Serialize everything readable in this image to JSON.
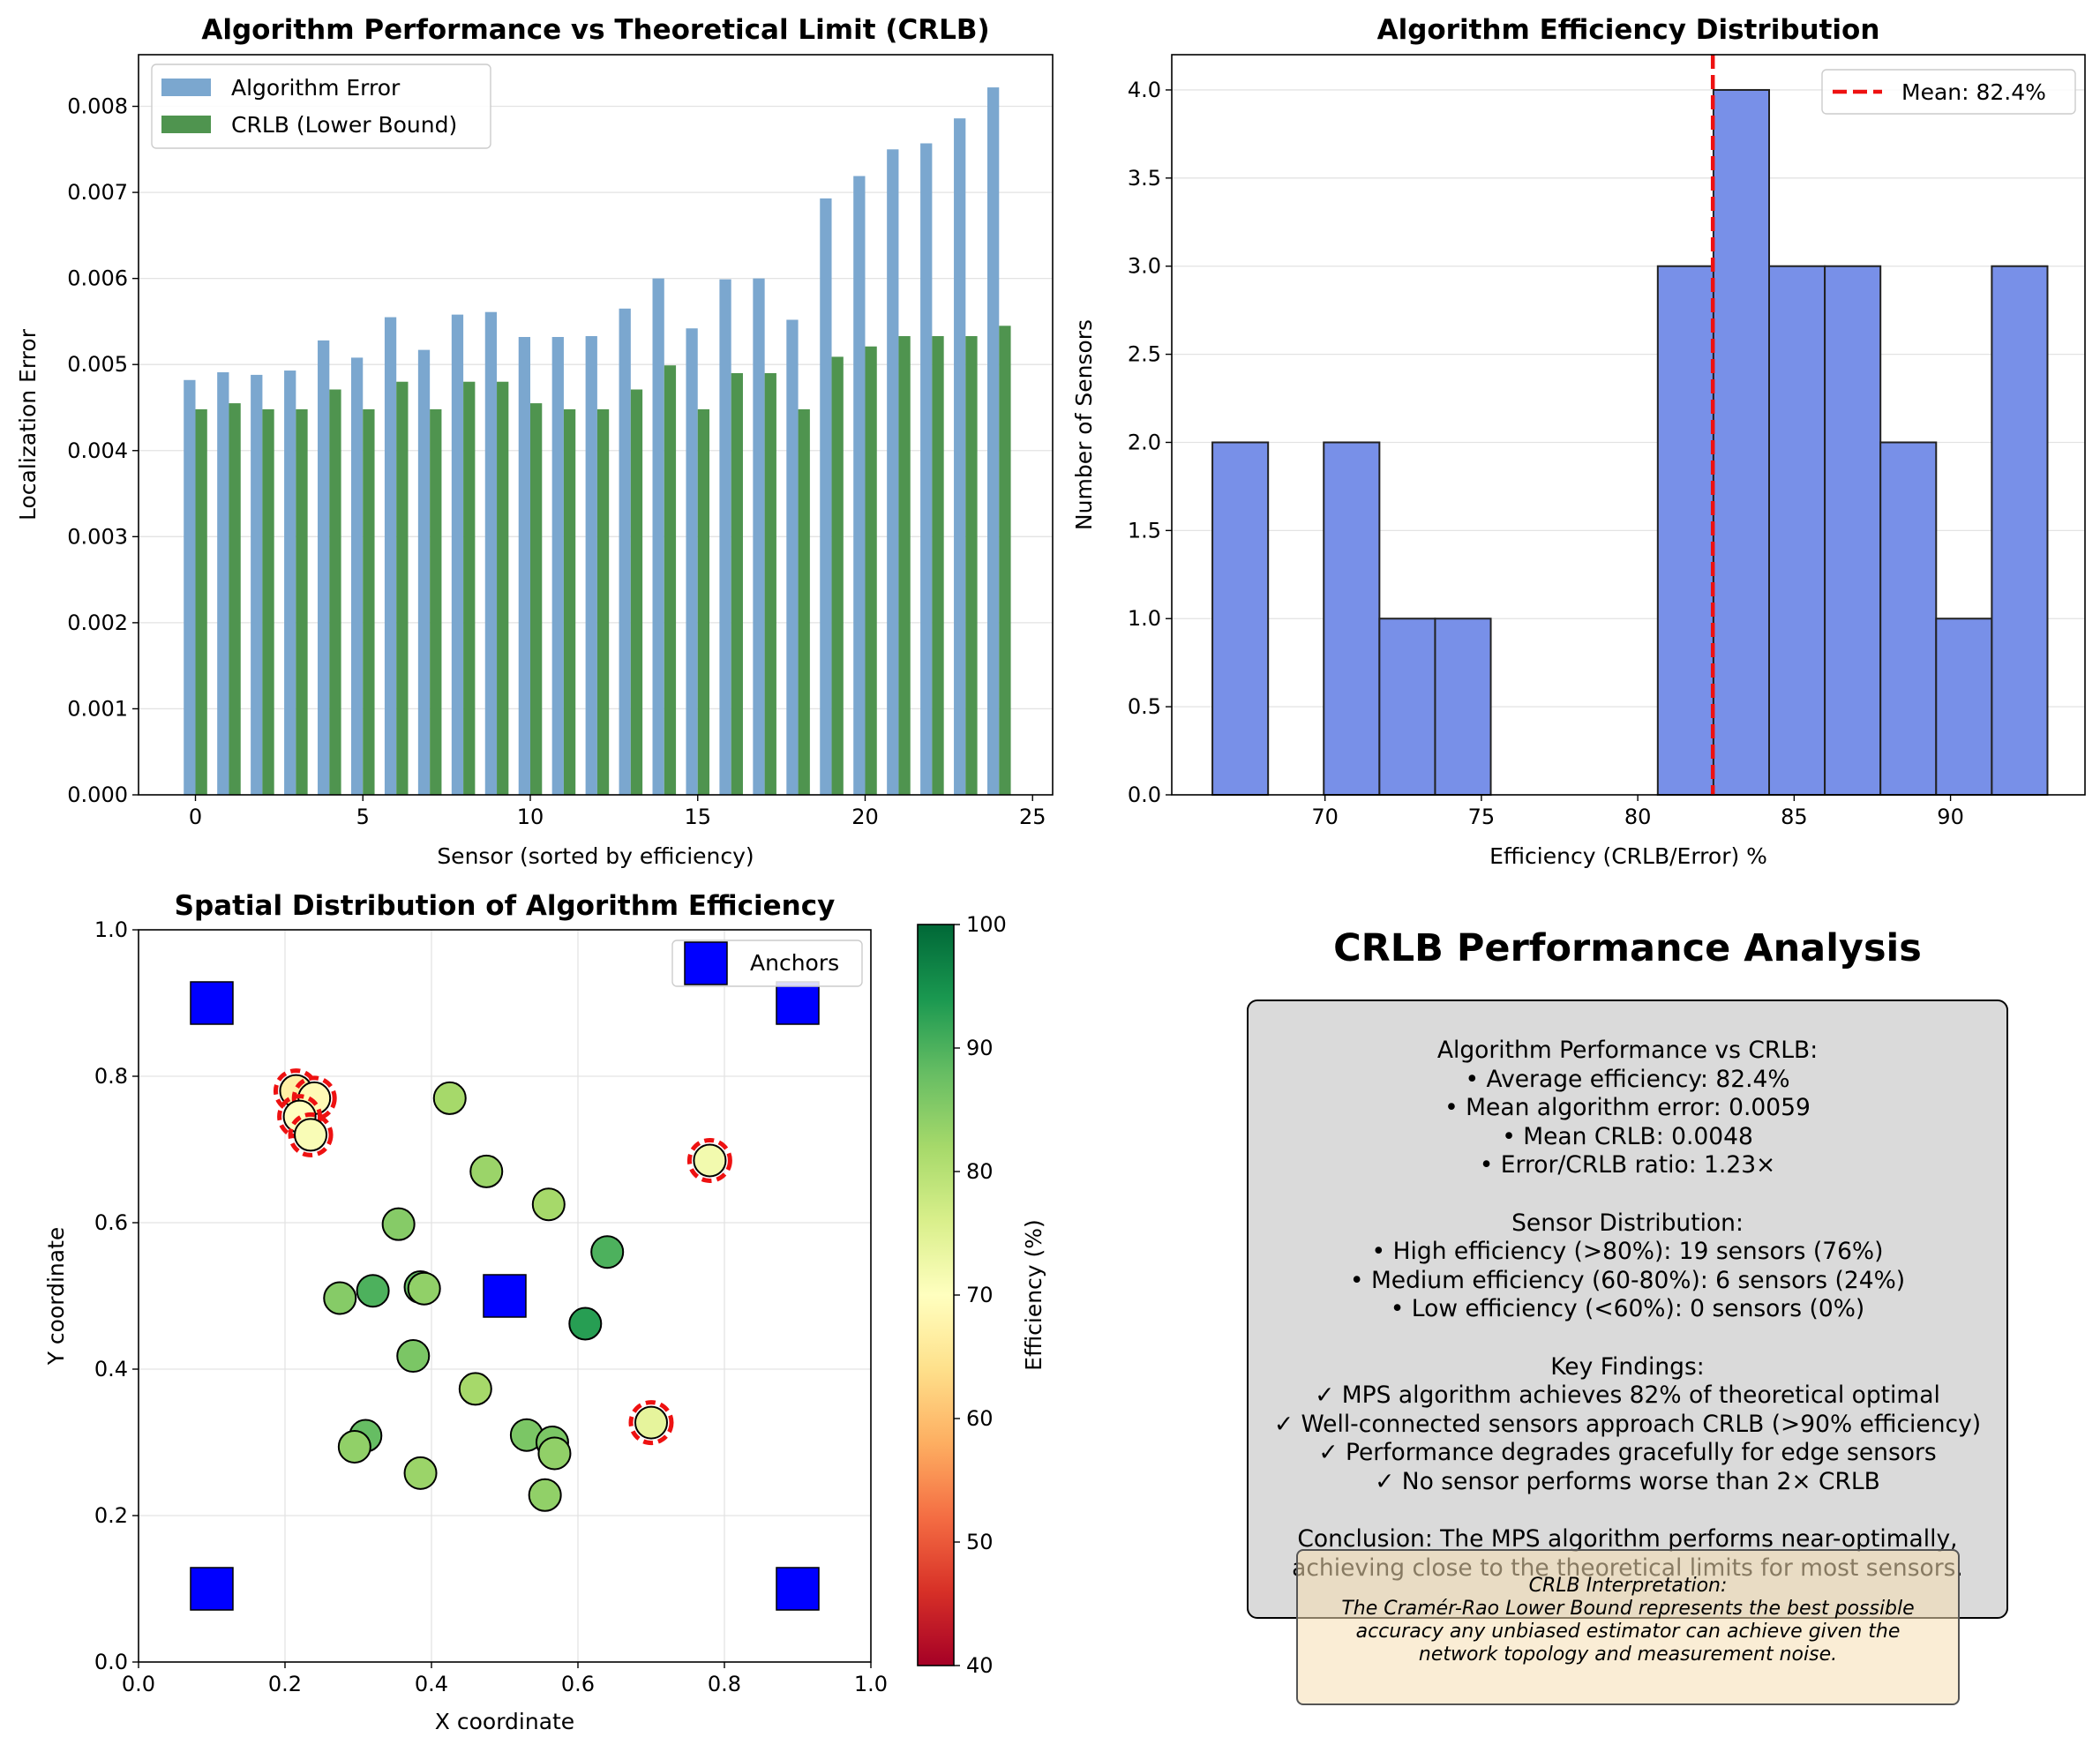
{
  "colors": {
    "algorithm_bar": "#7ba7cf",
    "crlb_bar": "#4f944f",
    "histogram": "#7890e8",
    "mean_line": "#ee1111",
    "anchor": "#0000ff",
    "low_eff_ring": "#ee1111",
    "summary_bg": "#dadada",
    "interp_bg": "#f7ebd3"
  },
  "chart_data": [
    {
      "type": "bar",
      "title": "Algorithm Performance vs Theoretical Limit (CRLB)",
      "xlabel": "Sensor (sorted by efficiency)",
      "ylabel": "Localization Error",
      "xlim": [
        -1.7,
        25.6
      ],
      "ylim": [
        0,
        0.0086
      ],
      "xticks": [
        0,
        5,
        10,
        15,
        20,
        25
      ],
      "yticks": [
        0,
        0.001,
        0.002,
        0.003,
        0.004,
        0.005,
        0.006,
        0.007,
        0.008
      ],
      "ytick_labels": [
        "0.000",
        "0.001",
        "0.002",
        "0.003",
        "0.004",
        "0.005",
        "0.006",
        "0.007",
        "0.008"
      ],
      "bar_width": 0.35,
      "legend_position": "top-left",
      "grid": "y",
      "categories": [
        0,
        1,
        2,
        3,
        4,
        5,
        6,
        7,
        8,
        9,
        10,
        11,
        12,
        13,
        14,
        15,
        16,
        17,
        18,
        19,
        20,
        21,
        22,
        23,
        24
      ],
      "series": [
        {
          "name": "Algorithm Error",
          "values": [
            0.00482,
            0.00491,
            0.00488,
            0.00493,
            0.00528,
            0.00508,
            0.00555,
            0.00517,
            0.00558,
            0.00561,
            0.00532,
            0.00532,
            0.00533,
            0.00565,
            0.006,
            0.00542,
            0.00599,
            0.006,
            0.00552,
            0.00693,
            0.00719,
            0.0075,
            0.00757,
            0.00786,
            0.00822
          ]
        },
        {
          "name": "CRLB (Lower Bound)",
          "values": [
            0.00448,
            0.00455,
            0.00448,
            0.00448,
            0.00471,
            0.00448,
            0.0048,
            0.00448,
            0.0048,
            0.0048,
            0.00455,
            0.00448,
            0.00448,
            0.00471,
            0.00499,
            0.00448,
            0.0049,
            0.0049,
            0.00448,
            0.00509,
            0.00521,
            0.00533,
            0.00533,
            0.00533,
            0.00545
          ]
        }
      ]
    },
    {
      "type": "histogram",
      "title": "Algorithm Efficiency Distribution",
      "xlabel": "Efficiency (CRLB/Error) %",
      "ylabel": "Number of Sensors",
      "xlim": [
        65.1,
        94.3
      ],
      "ylim": [
        0,
        4.2
      ],
      "xticks": [
        70,
        75,
        80,
        85,
        90
      ],
      "yticks": [
        0,
        0.5,
        1.0,
        1.5,
        2.0,
        2.5,
        3.0,
        3.5,
        4.0
      ],
      "ytick_labels": [
        "0.0",
        "0.5",
        "1.0",
        "1.5",
        "2.0",
        "2.5",
        "3.0",
        "3.5",
        "4.0"
      ],
      "grid": "y",
      "bin_edges": [
        66.4,
        68.18,
        69.96,
        71.74,
        73.52,
        75.3,
        77.08,
        78.86,
        80.64,
        82.42,
        84.2,
        85.98,
        87.76,
        89.54,
        91.32,
        93.1
      ],
      "counts": [
        2,
        0,
        2,
        1,
        1,
        0,
        0,
        0,
        3,
        4,
        3,
        3,
        2,
        1,
        3
      ],
      "mean": 82.4,
      "mean_label": "Mean: 82.4%",
      "legend_position": "top-right"
    },
    {
      "type": "scatter",
      "title": "Spatial Distribution of Algorithm Efficiency",
      "xlabel": "X coordinate",
      "ylabel": "Y coordinate",
      "xlim": [
        0,
        1
      ],
      "ylim": [
        0,
        1
      ],
      "xticks": [
        0,
        0.2,
        0.4,
        0.6,
        0.8,
        1.0
      ],
      "yticks": [
        0,
        0.2,
        0.4,
        0.6,
        0.8,
        1.0
      ],
      "tick_labels": [
        "0.0",
        "0.2",
        "0.4",
        "0.6",
        "0.8",
        "1.0"
      ],
      "grid": "both",
      "colorbar": {
        "label": "Efficiency (%)",
        "min": 40,
        "max": 100,
        "ticks": [
          40,
          50,
          60,
          70,
          80,
          90,
          100
        ],
        "colormap": "RdYlGn"
      },
      "anchors": {
        "name": "Anchors",
        "points": [
          [
            0.1,
            0.9
          ],
          [
            0.9,
            0.9
          ],
          [
            0.5,
            0.5
          ],
          [
            0.1,
            0.1
          ],
          [
            0.9,
            0.1
          ]
        ]
      },
      "legend_position": "top-right",
      "low_efficiency_threshold": 75,
      "sensors": [
        {
          "x": 0.215,
          "y": 0.78,
          "eff": 67
        },
        {
          "x": 0.24,
          "y": 0.77,
          "eff": 69
        },
        {
          "x": 0.22,
          "y": 0.745,
          "eff": 70
        },
        {
          "x": 0.235,
          "y": 0.72,
          "eff": 71
        },
        {
          "x": 0.78,
          "y": 0.685,
          "eff": 72
        },
        {
          "x": 0.7,
          "y": 0.327,
          "eff": 74
        },
        {
          "x": 0.425,
          "y": 0.77,
          "eff": 82
        },
        {
          "x": 0.475,
          "y": 0.67,
          "eff": 83
        },
        {
          "x": 0.56,
          "y": 0.625,
          "eff": 82
        },
        {
          "x": 0.355,
          "y": 0.598,
          "eff": 85
        },
        {
          "x": 0.64,
          "y": 0.56,
          "eff": 90
        },
        {
          "x": 0.385,
          "y": 0.512,
          "eff": 88
        },
        {
          "x": 0.39,
          "y": 0.51,
          "eff": 84
        },
        {
          "x": 0.32,
          "y": 0.507,
          "eff": 90
        },
        {
          "x": 0.275,
          "y": 0.497,
          "eff": 85
        },
        {
          "x": 0.61,
          "y": 0.462,
          "eff": 93
        },
        {
          "x": 0.375,
          "y": 0.418,
          "eff": 86
        },
        {
          "x": 0.46,
          "y": 0.373,
          "eff": 82
        },
        {
          "x": 0.53,
          "y": 0.31,
          "eff": 86
        },
        {
          "x": 0.565,
          "y": 0.3,
          "eff": 86
        },
        {
          "x": 0.31,
          "y": 0.309,
          "eff": 88
        },
        {
          "x": 0.295,
          "y": 0.294,
          "eff": 84
        },
        {
          "x": 0.568,
          "y": 0.285,
          "eff": 84
        },
        {
          "x": 0.385,
          "y": 0.258,
          "eff": 83
        },
        {
          "x": 0.555,
          "y": 0.228,
          "eff": 84
        }
      ]
    }
  ],
  "summary": {
    "title": "CRLB Performance Analysis",
    "lines": [
      "Algorithm Performance vs CRLB:",
      "• Average efficiency: 82.4%",
      "• Mean algorithm error: 0.0059",
      "• Mean CRLB: 0.0048",
      "• Error/CRLB ratio: 1.23×",
      "",
      "Sensor Distribution:",
      "• High efficiency (>80%): 19 sensors (76%)",
      "• Medium efficiency (60-80%): 6 sensors (24%)",
      "• Low efficiency (<60%): 0 sensors (0%)",
      "",
      "Key Findings:",
      "✓ MPS algorithm achieves 82% of theoretical optimal",
      "✓ Well-connected sensors approach CRLB (>90% efficiency)",
      "✓ Performance degrades gracefully for edge sensors",
      "✓ No sensor performs worse than 2× CRLB",
      "",
      "Conclusion: The MPS algorithm performs near-optimally,",
      "achieving close to the theoretical limits for most sensors."
    ],
    "interpretation_lines": [
      "CRLB Interpretation:",
      "The Cramér-Rao Lower Bound represents the best possible",
      "accuracy any unbiased estimator can achieve given the",
      "network topology and measurement noise."
    ]
  }
}
